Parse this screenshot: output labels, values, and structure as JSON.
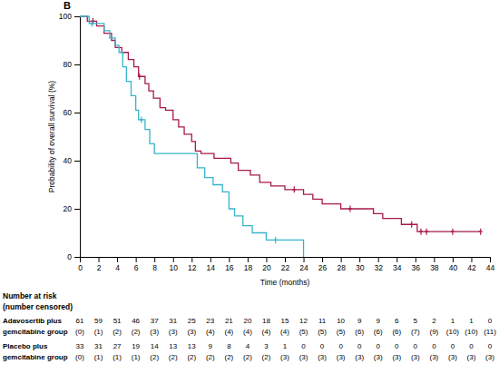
{
  "chart_data": {
    "type": "line",
    "title": "B",
    "x_label": "Time (months)",
    "y_label": "Probability of overall survival (%)",
    "xlim": [
      0,
      44
    ],
    "ylim": [
      0,
      100
    ],
    "xticks": [
      0,
      2,
      4,
      6,
      8,
      10,
      12,
      14,
      16,
      18,
      20,
      22,
      24,
      26,
      28,
      30,
      32,
      34,
      36,
      38,
      40,
      42,
      44
    ],
    "yticks": [
      0,
      20,
      40,
      60,
      80,
      100
    ],
    "grid": false,
    "line_style": "step",
    "risk_table_title": "Number at risk (number censored)",
    "series": [
      {
        "name": "Adavosertib plus gemcitabine group",
        "color": "#a6194b",
        "marker": "plus",
        "x": [
          0,
          0.8,
          1.8,
          2.6,
          3.4,
          3.8,
          4.5,
          5.2,
          5.8,
          6.3,
          7,
          7.4,
          7.9,
          8.6,
          9.2,
          10,
          10.6,
          11.2,
          12,
          12.4,
          13,
          14.4,
          16.2,
          17,
          18.3,
          19.3,
          20.5,
          22,
          24,
          25,
          26,
          28,
          31.5,
          32.5,
          34.5,
          36.2,
          43
        ],
        "values": [
          100,
          98,
          96,
          93,
          90,
          87,
          85,
          82,
          79,
          75,
          72,
          69,
          66,
          62,
          61,
          57,
          54,
          51,
          48,
          44,
          43,
          41,
          39,
          36,
          34,
          31,
          29.5,
          28,
          26,
          24,
          22,
          20,
          18,
          16,
          13.5,
          10.5,
          10.5
        ],
        "censored_x": [
          1.4,
          6.4,
          23,
          29,
          35.6,
          36.6,
          37.2,
          40,
          43
        ],
        "censored_values": [
          98,
          75,
          28,
          20,
          13.5,
          10.5,
          10.5,
          10.5,
          10.5
        ],
        "at_risk": [
          61,
          59,
          51,
          46,
          37,
          31,
          25,
          23,
          21,
          20,
          18,
          15,
          12,
          11,
          10,
          9,
          9,
          6,
          5,
          2,
          1,
          1,
          0
        ],
        "at_risk_censored": [
          "(0)",
          "(1)",
          "(2)",
          "(2)",
          "(3)",
          "(3)",
          "(3)",
          "(4)",
          "(4)",
          "(4)",
          "(4)",
          "(4)",
          "(5)",
          "(5)",
          "(5)",
          "(6)",
          "(6)",
          "(6)",
          "(7)",
          "(9)",
          "(10)",
          "(10)",
          "(11)"
        ]
      },
      {
        "name": "Placebo plus gemcitabine group",
        "color": "#35b5c9",
        "marker": "plus",
        "x": [
          0,
          1,
          2.6,
          3.2,
          3.8,
          4.2,
          4.6,
          5,
          5.5,
          6,
          6.3,
          7,
          7.5,
          8,
          12.6,
          13.4,
          14.3,
          15.3,
          16,
          16.6,
          17.5,
          18.5,
          20,
          24
        ],
        "values": [
          100,
          97,
          94,
          91,
          88,
          85,
          79,
          73,
          67,
          61,
          57,
          53,
          47,
          43,
          37,
          33,
          30,
          27,
          20,
          17,
          13,
          10,
          7,
          0
        ],
        "censored_x": [
          1.3,
          6.6,
          21
        ],
        "censored_values": [
          97,
          57,
          7
        ],
        "at_risk": [
          33,
          31,
          27,
          19,
          14,
          13,
          13,
          9,
          8,
          4,
          3,
          1,
          0,
          0,
          0,
          0,
          0,
          0,
          0,
          0,
          0,
          0,
          0
        ],
        "at_risk_censored": [
          "(0)",
          "(1)",
          "(1)",
          "(1)",
          "(2)",
          "(2)",
          "(2)",
          "(2)",
          "(2)",
          "(2)",
          "(2)",
          "(3)",
          "(3)",
          "(3)",
          "(3)",
          "(3)",
          "(3)",
          "(3)",
          "(3)",
          "(3)",
          "(3)",
          "(3)",
          "(3)"
        ]
      }
    ]
  }
}
